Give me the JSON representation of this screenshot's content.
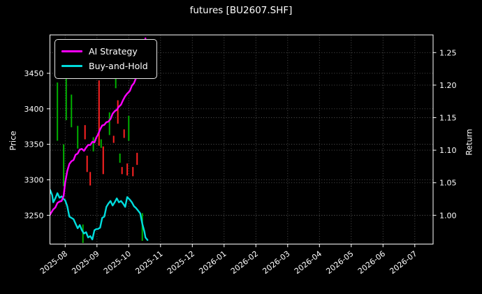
{
  "window": {
    "title": "futures [BU2607.SHF]"
  },
  "chart_data": {
    "type": "mixed",
    "subtype": [
      "candlestick-hl-bars",
      "line",
      "line"
    ],
    "title": "futures [BU2607.SHF]",
    "background_color": "#000000",
    "text_color": "#ffffff",
    "grid": true,
    "grid_color": "#585858",
    "legend": {
      "position": "upper left",
      "entries": [
        {
          "label": "AI Strategy",
          "color": "#ff00ff"
        },
        {
          "label": "Buy-and-Hold",
          "color": "#00dcdc"
        }
      ]
    },
    "x_axis": {
      "tick_labels": [
        "2025-08",
        "2025-09",
        "2025-10",
        "2025-11",
        "2025-12",
        "2026-01",
        "2026-02",
        "2026-03",
        "2026-04",
        "2026-05",
        "2026-06",
        "2026-07"
      ],
      "label_rotation_deg": -38
    },
    "left_axis": {
      "label": "Price",
      "ticks": [
        3250,
        3300,
        3350,
        3400,
        3450
      ],
      "range": [
        3210,
        3504
      ]
    },
    "right_axis": {
      "label": "Return",
      "ticks": [
        "1.00",
        "1.05",
        "1.10",
        "1.15",
        "1.20",
        "1.25"
      ],
      "range": [
        0.956,
        1.277
      ]
    },
    "candle_colors": {
      "up": "#00b000",
      "down": "#ff2222"
    },
    "candles": [
      [
        "2025-07-16",
        3253,
        3280,
        "up"
      ],
      [
        "2025-07-24",
        3355,
        3437,
        "up"
      ],
      [
        "2025-07-30",
        3291,
        3350,
        "up"
      ],
      [
        "2025-08-02",
        3384,
        3466,
        "up"
      ],
      [
        "2025-08-07",
        3374,
        3420,
        "up"
      ],
      [
        "2025-08-13",
        3344,
        3376,
        "up"
      ],
      [
        "2025-08-18",
        3211,
        3237,
        "up"
      ],
      [
        "2025-08-20",
        3357,
        3377,
        "down"
      ],
      [
        "2025-08-22",
        3311,
        3334,
        "down"
      ],
      [
        "2025-08-25",
        3292,
        3311,
        "down"
      ],
      [
        "2025-08-28",
        3340,
        3360,
        "up"
      ],
      [
        "2025-09-03",
        3348,
        3440,
        "down"
      ],
      [
        "2025-09-05",
        3345,
        3357,
        "up"
      ],
      [
        "2025-09-07",
        3308,
        3347,
        "down"
      ],
      [
        "2025-09-13",
        3363,
        3395,
        "up"
      ],
      [
        "2025-09-17",
        3352,
        3362,
        "down"
      ],
      [
        "2025-09-19",
        3429,
        3444,
        "up"
      ],
      [
        "2025-09-21",
        3379,
        3412,
        "down"
      ],
      [
        "2025-09-23",
        3324,
        3337,
        "up"
      ],
      [
        "2025-09-25",
        3308,
        3318,
        "down"
      ],
      [
        "2025-09-27",
        3359,
        3371,
        "down"
      ],
      [
        "2025-09-30",
        3306,
        3323,
        "down"
      ],
      [
        "2025-10-01",
        3355,
        3390,
        "up"
      ],
      [
        "2025-10-05",
        3305,
        3318,
        "down"
      ],
      [
        "2025-10-09",
        3321,
        3338,
        "down"
      ],
      [
        "2025-10-14",
        3214,
        3253,
        "up"
      ]
    ],
    "series": [
      {
        "name": "AI Strategy",
        "axis": "return",
        "color": "#ff00ff",
        "points": [
          [
            "2025-07-16",
            0.998
          ],
          [
            "2025-07-18",
            1.004
          ],
          [
            "2025-07-20",
            1.009
          ],
          [
            "2025-07-22",
            1.012
          ],
          [
            "2025-07-24",
            1.019
          ],
          [
            "2025-07-26",
            1.021
          ],
          [
            "2025-07-28",
            1.022
          ],
          [
            "2025-07-30",
            1.03
          ],
          [
            "2025-08-01",
            1.05
          ],
          [
            "2025-08-03",
            1.068
          ],
          [
            "2025-08-05",
            1.079
          ],
          [
            "2025-08-07",
            1.083
          ],
          [
            "2025-08-09",
            1.085
          ],
          [
            "2025-08-11",
            1.093
          ],
          [
            "2025-08-13",
            1.095
          ],
          [
            "2025-08-15",
            1.101
          ],
          [
            "2025-08-17",
            1.102
          ],
          [
            "2025-08-19",
            1.099
          ],
          [
            "2025-08-21",
            1.104
          ],
          [
            "2025-08-23",
            1.108
          ],
          [
            "2025-08-25",
            1.108
          ],
          [
            "2025-08-27",
            1.113
          ],
          [
            "2025-08-29",
            1.112
          ],
          [
            "2025-08-31",
            1.12
          ],
          [
            "2025-09-02",
            1.124
          ],
          [
            "2025-09-04",
            1.132
          ],
          [
            "2025-09-06",
            1.138
          ],
          [
            "2025-09-08",
            1.139
          ],
          [
            "2025-09-10",
            1.143
          ],
          [
            "2025-09-12",
            1.144
          ],
          [
            "2025-09-14",
            1.148
          ],
          [
            "2025-09-16",
            1.156
          ],
          [
            "2025-09-18",
            1.16
          ],
          [
            "2025-09-20",
            1.162
          ],
          [
            "2025-09-22",
            1.167
          ],
          [
            "2025-09-24",
            1.17
          ],
          [
            "2025-09-26",
            1.177
          ],
          [
            "2025-09-28",
            1.183
          ],
          [
            "2025-09-30",
            1.187
          ],
          [
            "2025-10-02",
            1.191
          ],
          [
            "2025-10-04",
            1.199
          ],
          [
            "2025-10-06",
            1.203
          ],
          [
            "2025-10-08",
            1.211
          ],
          [
            "2025-10-10",
            1.217
          ],
          [
            "2025-10-12",
            1.225
          ],
          [
            "2025-10-14",
            1.24
          ],
          [
            "2025-10-16",
            1.254
          ],
          [
            "2025-10-17",
            1.272
          ]
        ]
      },
      {
        "name": "Buy-and-Hold",
        "axis": "return",
        "color": "#00dcdc",
        "points": [
          [
            "2025-07-16",
            1.027
          ],
          [
            "2025-07-17",
            1.039
          ],
          [
            "2025-07-19",
            1.031
          ],
          [
            "2025-07-20",
            1.02
          ],
          [
            "2025-07-22",
            1.026
          ],
          [
            "2025-07-24",
            1.034
          ],
          [
            "2025-07-26",
            1.027
          ],
          [
            "2025-07-28",
            1.029
          ],
          [
            "2025-07-30",
            1.025
          ],
          [
            "2025-08-01",
            1.023
          ],
          [
            "2025-08-03",
            1.014
          ],
          [
            "2025-08-05",
            0.998
          ],
          [
            "2025-08-07",
            0.996
          ],
          [
            "2025-08-09",
            0.994
          ],
          [
            "2025-08-11",
            0.987
          ],
          [
            "2025-08-13",
            0.98
          ],
          [
            "2025-08-15",
            0.985
          ],
          [
            "2025-08-17",
            0.977
          ],
          [
            "2025-08-19",
            0.972
          ],
          [
            "2025-08-21",
            0.974
          ],
          [
            "2025-08-23",
            0.966
          ],
          [
            "2025-08-25",
            0.968
          ],
          [
            "2025-08-27",
            0.963
          ],
          [
            "2025-08-29",
            0.977
          ],
          [
            "2025-08-31",
            0.979
          ],
          [
            "2025-09-02",
            0.979
          ],
          [
            "2025-09-04",
            0.981
          ],
          [
            "2025-09-06",
            0.996
          ],
          [
            "2025-09-08",
            0.998
          ],
          [
            "2025-09-10",
            1.013
          ],
          [
            "2025-09-12",
            1.018
          ],
          [
            "2025-09-14",
            1.022
          ],
          [
            "2025-09-16",
            1.015
          ],
          [
            "2025-09-18",
            1.02
          ],
          [
            "2025-09-20",
            1.026
          ],
          [
            "2025-09-22",
            1.02
          ],
          [
            "2025-09-24",
            1.022
          ],
          [
            "2025-09-26",
            1.018
          ],
          [
            "2025-09-28",
            1.013
          ],
          [
            "2025-09-30",
            1.028
          ],
          [
            "2025-10-02",
            1.024
          ],
          [
            "2025-10-04",
            1.02
          ],
          [
            "2025-10-06",
            1.014
          ],
          [
            "2025-10-08",
            1.011
          ],
          [
            "2025-10-10",
            1.007
          ],
          [
            "2025-10-12",
            1.003
          ],
          [
            "2025-10-14",
            0.987
          ],
          [
            "2025-10-16",
            0.975
          ],
          [
            "2025-10-17",
            0.966
          ],
          [
            "2025-10-19",
            0.962
          ]
        ]
      }
    ]
  }
}
